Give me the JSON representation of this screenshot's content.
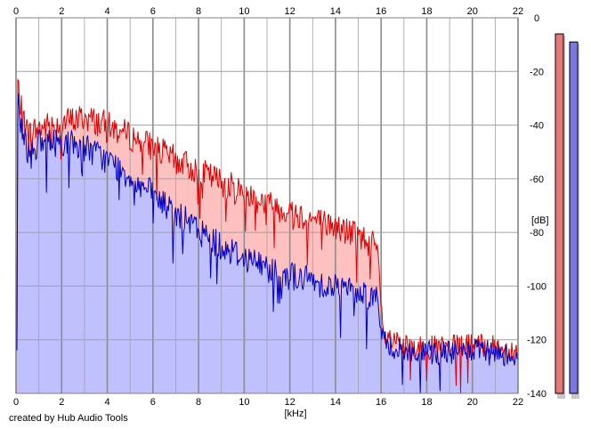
{
  "footer": {
    "credit": "created by Hub Audio Tools"
  },
  "colors": {
    "background": "#ffffff",
    "grid": "#a0a0a0",
    "channel_1_line": "#e00000",
    "channel_1_fill": "#ffc0c0",
    "channel_2_line": "#0000c0",
    "channel_2_fill": "#c0c0ff",
    "meter_1": "#e87878",
    "meter_2": "#7878e0"
  },
  "chart_data": {
    "type": "area",
    "title": "",
    "xlabel": "[kHz]",
    "ylabel": "[dB]",
    "xlim": [
      0,
      22
    ],
    "ylim": [
      -140,
      0
    ],
    "x_ticks": [
      "0",
      "2",
      "4",
      "6",
      "8",
      "10",
      "12",
      "14",
      "16",
      "18",
      "20",
      "22"
    ],
    "y_ticks": [
      "0",
      "-20",
      "-40",
      "-60",
      "-80",
      "-100",
      "-120",
      "-140"
    ],
    "grid": true,
    "x_major_every": 2,
    "series": [
      {
        "x": [
          0.05,
          0.2,
          0.5,
          1,
          2,
          3,
          4,
          5,
          6,
          7,
          8,
          9,
          10,
          11,
          12,
          13,
          14,
          15,
          15.8,
          16.1,
          17,
          18,
          19,
          20,
          21,
          22
        ],
        "values": [
          -22,
          -32,
          -42,
          -40,
          -38,
          -36,
          -39,
          -43,
          -47,
          -52,
          -56,
          -60,
          -64,
          -68,
          -71,
          -74,
          -77,
          -80,
          -84,
          -118,
          -122,
          -122,
          -122,
          -121,
          -122,
          -123
        ]
      },
      {
        "x": [
          0.05,
          0.2,
          0.5,
          1,
          2,
          3,
          4,
          5,
          6,
          7,
          8,
          9,
          10,
          11,
          12,
          13,
          14,
          15,
          15.8,
          16.1,
          17,
          18,
          19,
          20,
          21,
          22
        ],
        "values": [
          -25,
          -38,
          -48,
          -46,
          -45,
          -47,
          -52,
          -58,
          -65,
          -72,
          -78,
          -84,
          -88,
          -92,
          -95,
          -97,
          -99,
          -101,
          -103,
          -120,
          -124,
          -124,
          -124,
          -123,
          -124,
          -125
        ]
      }
    ],
    "meters": [
      {
        "level_db": -6
      },
      {
        "level_db": -9
      }
    ]
  }
}
